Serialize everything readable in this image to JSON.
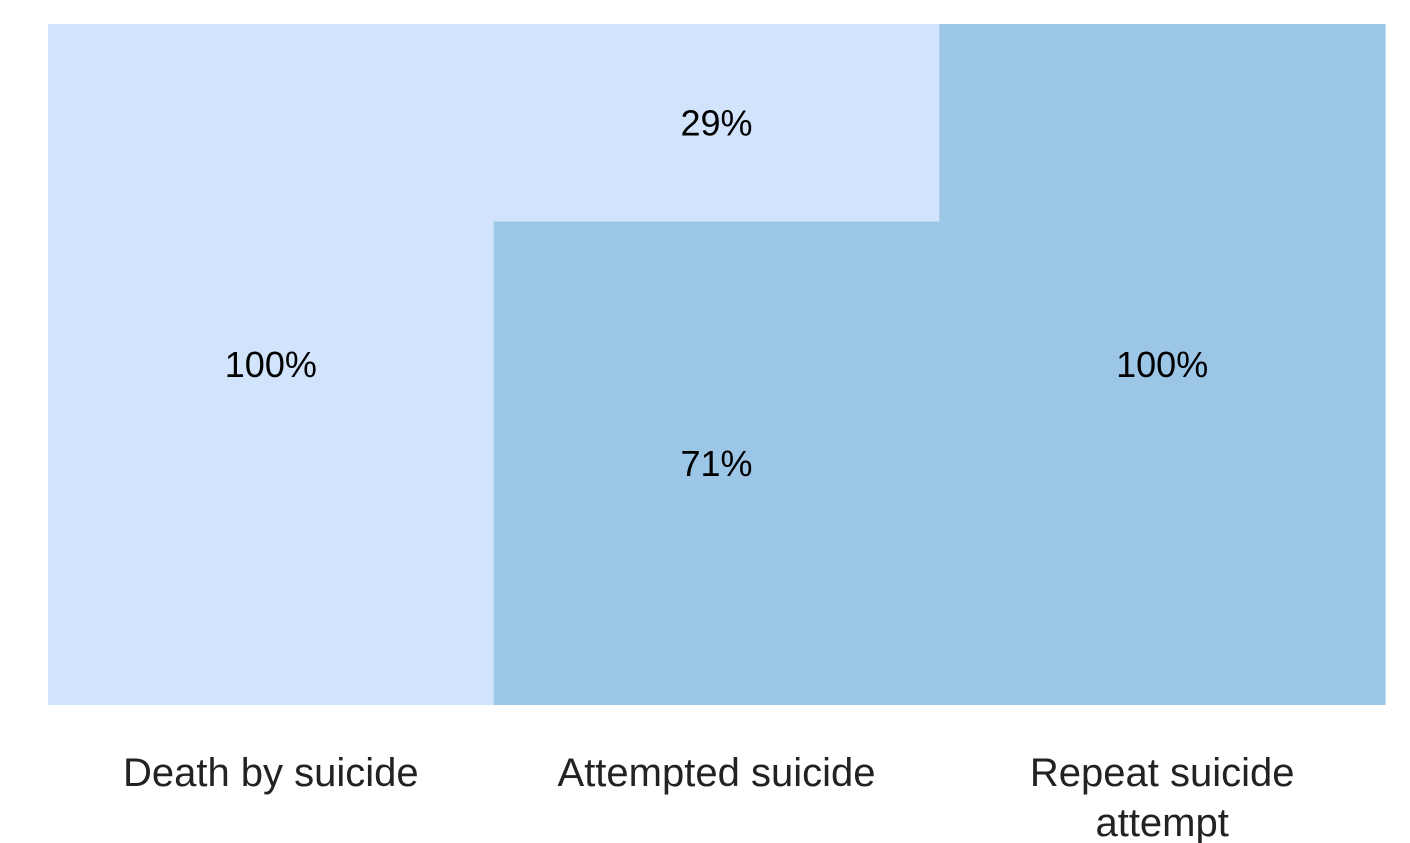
{
  "chart_data": {
    "type": "bar",
    "stacked": true,
    "percent_stacked": true,
    "categories": [
      [
        "Death by suicide"
      ],
      [
        "Attempted suicide"
      ],
      [
        "Repeat suicide",
        "attempt"
      ]
    ],
    "series": [
      {
        "values": [
          0,
          71,
          100
        ],
        "color": "#9bc6e5"
      },
      {
        "values": [
          100,
          29,
          0
        ],
        "color": "#d1e4fb"
      }
    ],
    "data_labels": [
      "100%",
      "71%",
      "29%",
      "100%"
    ],
    "ylim": [
      0,
      100
    ],
    "grid": false,
    "legend": "none",
    "title": "",
    "xlabel": "",
    "ylabel": ""
  }
}
